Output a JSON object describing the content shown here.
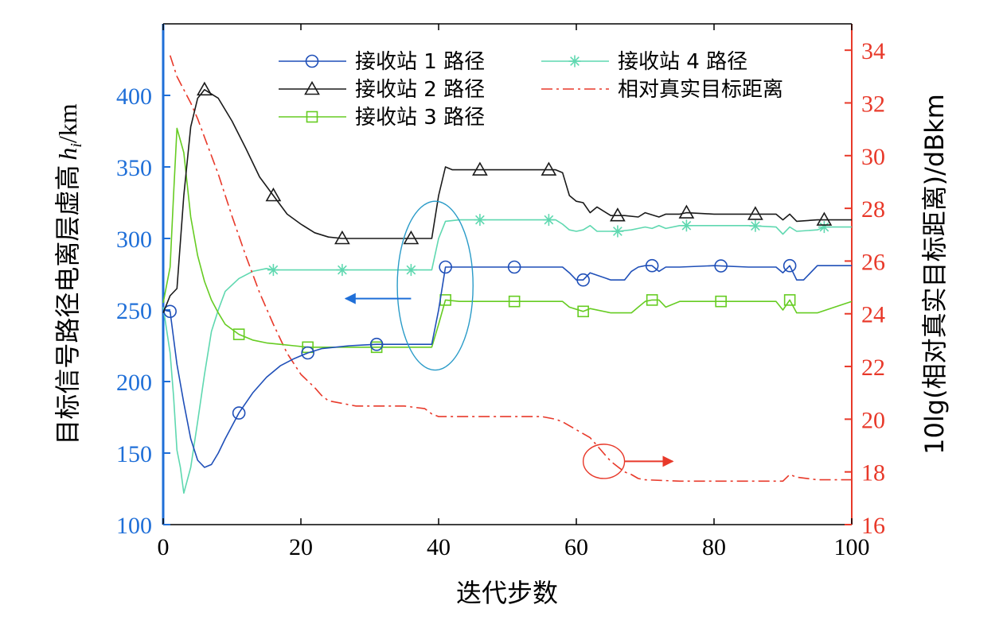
{
  "chart_data": {
    "type": "line",
    "xlabel": "迭代步数",
    "ylabel_left": "目标信号路径电离层虚高",
    "ylabel_left_symbol": "h",
    "ylabel_left_subscript": "i",
    "ylabel_left_unit": "/km",
    "ylabel_right": "10lg(相对真实目标距离)/dBkm",
    "xlim": [
      0,
      100
    ],
    "ylim_left": [
      100,
      450
    ],
    "ylim_right": [
      16,
      35
    ],
    "x_ticks": [
      "0",
      "20",
      "40",
      "60",
      "80",
      "100"
    ],
    "x_tick_values": [
      0,
      20,
      40,
      60,
      80,
      100
    ],
    "y_left_ticks": [
      "100",
      "150",
      "200",
      "250",
      "300",
      "350",
      "400"
    ],
    "y_left_tick_values": [
      100,
      150,
      200,
      250,
      300,
      350,
      400
    ],
    "y_right_ticks": [
      "16",
      "18",
      "20",
      "22",
      "24",
      "26",
      "28",
      "30",
      "32",
      "34"
    ],
    "y_right_tick_values": [
      16,
      18,
      20,
      22,
      24,
      26,
      28,
      30,
      32,
      34
    ],
    "grid": false,
    "legend_position": "top",
    "colors": {
      "left_axis": "#1f6fd8",
      "right_axis": "#e8392a",
      "series1": "#1f4fb8",
      "series2": "#1a1a1a",
      "series3": "#66cc22",
      "series4": "#5fd8b0",
      "series5": "#e8392a",
      "ellipse": "#2a9bc8"
    },
    "series": [
      {
        "name": "接收站 1 路径",
        "axis": "left",
        "marker": "circle",
        "marker_x": [
          1,
          11,
          21,
          31,
          41,
          51,
          61,
          71,
          81,
          91
        ],
        "x": [
          0,
          1,
          2,
          3,
          4,
          5,
          6,
          7,
          8,
          9,
          11,
          13,
          15,
          17,
          19,
          21,
          23,
          25,
          27,
          29,
          31,
          33,
          35,
          37,
          39,
          40,
          41,
          43,
          45,
          50,
          55,
          58,
          59,
          60,
          61,
          62,
          65,
          67,
          68,
          69,
          70,
          71,
          72,
          73,
          75,
          80,
          85,
          89,
          90,
          91,
          92,
          93,
          95,
          100
        ],
        "y": [
          250,
          249,
          212,
          185,
          160,
          145,
          140,
          142,
          150,
          160,
          178,
          192,
          203,
          211,
          216,
          220,
          223,
          224,
          225,
          225.5,
          226,
          226,
          226,
          226,
          226,
          250,
          280,
          280,
          280,
          280,
          280,
          280,
          276,
          271,
          271,
          276,
          271,
          271,
          277,
          280,
          281,
          281,
          277,
          280,
          280,
          281,
          280,
          280,
          276,
          281,
          271,
          271,
          281,
          281
        ]
      },
      {
        "name": "接收站 2 路径",
        "axis": "left",
        "marker": "triangle",
        "marker_x": [
          6,
          16,
          26,
          36,
          46,
          56,
          66,
          76,
          86,
          96
        ],
        "x": [
          0,
          1,
          2,
          3,
          4,
          5,
          6,
          8,
          10,
          12,
          14,
          16,
          18,
          20,
          22,
          24,
          26,
          28,
          30,
          35,
          38,
          39,
          40,
          41,
          42,
          45,
          50,
          55,
          57,
          58,
          59,
          60,
          61,
          62,
          63,
          65,
          67,
          69,
          70,
          72,
          73,
          75,
          76,
          80,
          85,
          89,
          90,
          91,
          92,
          95,
          100
        ],
        "y": [
          248,
          260,
          265,
          330,
          378,
          398,
          404,
          398,
          382,
          363,
          343,
          330,
          317,
          310,
          304,
          301,
          300,
          300,
          300,
          300,
          300,
          300,
          330,
          350,
          348,
          348,
          348,
          348,
          348,
          346,
          330,
          326,
          325,
          318,
          322,
          316,
          316,
          315,
          318,
          315,
          317,
          317,
          318,
          317,
          317,
          317,
          313,
          317,
          312,
          313,
          313
        ]
      },
      {
        "name": "接收站 3 路径",
        "axis": "left",
        "marker": "square",
        "marker_x": [
          11,
          21,
          31,
          41,
          51,
          61,
          71,
          81,
          91
        ],
        "x": [
          0,
          1,
          1.5,
          2,
          3,
          4,
          5,
          6,
          7,
          8,
          9,
          11,
          13,
          15,
          17,
          19,
          21,
          25,
          30,
          35,
          39,
          40,
          41,
          43,
          50,
          55,
          58,
          59,
          61,
          62,
          65,
          68,
          69,
          70,
          71,
          72,
          73,
          75,
          80,
          85,
          89,
          90,
          91,
          92,
          95,
          100
        ],
        "y": [
          255,
          280,
          330,
          377,
          360,
          315,
          288,
          270,
          257,
          248,
          240,
          233,
          229,
          227,
          226,
          225,
          224,
          224,
          224,
          224,
          224,
          240,
          257,
          256,
          256,
          256,
          256,
          252,
          249,
          251,
          248,
          248,
          252,
          256,
          257,
          257,
          252,
          256,
          256,
          256,
          256,
          250,
          257,
          248,
          248,
          256
        ]
      },
      {
        "name": "接收站 4 路径",
        "axis": "left",
        "marker": "asterisk",
        "marker_x": [
          16,
          26,
          36,
          46,
          56,
          66,
          76,
          86,
          96
        ],
        "x": [
          0,
          1,
          1.5,
          2,
          2.5,
          3,
          4,
          5,
          6,
          7,
          8,
          9,
          11,
          13,
          15,
          16,
          20,
          25,
          30,
          35,
          39,
          40,
          41,
          43,
          50,
          55,
          57,
          58,
          59,
          60,
          61,
          62,
          63,
          65,
          66,
          68,
          69,
          70,
          71,
          72,
          73,
          75,
          76,
          80,
          85,
          89,
          90,
          91,
          92,
          95,
          96,
          100
        ],
        "y": [
          252,
          220,
          190,
          152,
          140,
          122,
          140,
          172,
          205,
          235,
          250,
          263,
          272,
          277,
          279,
          278,
          278,
          278,
          278,
          278,
          278,
          300,
          312,
          313,
          313,
          313,
          313,
          310,
          306,
          305,
          306,
          309,
          305,
          305,
          305,
          306,
          307,
          308,
          307,
          309,
          307,
          309,
          309,
          309,
          309,
          308,
          303,
          308,
          305,
          306,
          308,
          308
        ]
      },
      {
        "name": "相对真实目标距离",
        "axis": "right",
        "marker": "none",
        "x": [
          1,
          2,
          3,
          4,
          5,
          6,
          8,
          10,
          12,
          14,
          16,
          18,
          20,
          22,
          23,
          24,
          26,
          28,
          30,
          35,
          38,
          39,
          40,
          45,
          50,
          55,
          57,
          58,
          60,
          62,
          63,
          64,
          65,
          66,
          67,
          68,
          69,
          70,
          75,
          80,
          85,
          90,
          91,
          92,
          95,
          100
        ],
        "y": [
          33.8,
          33.0,
          32.5,
          32.0,
          31.4,
          30.7,
          29.3,
          27.7,
          26.2,
          24.8,
          23.6,
          22.5,
          21.7,
          21.2,
          20.9,
          20.7,
          20.6,
          20.5,
          20.5,
          20.5,
          20.4,
          20.2,
          20.1,
          20.1,
          20.1,
          20.1,
          20.0,
          19.9,
          19.6,
          19.3,
          19.0,
          18.7,
          18.4,
          18.2,
          18.0,
          17.9,
          17.75,
          17.7,
          17.65,
          17.65,
          17.65,
          17.65,
          17.9,
          17.8,
          17.7,
          17.7
        ]
      }
    ],
    "annotations": [
      {
        "type": "ellipse",
        "center": [
          39.5,
          267
        ],
        "radius_x": 5.5,
        "radius_y": 59,
        "axis": "left"
      },
      {
        "type": "arrow",
        "from": [
          36,
          258
        ],
        "to": [
          26.5,
          258
        ],
        "axis": "left",
        "direction": "left"
      },
      {
        "type": "circle",
        "center": [
          64,
          18.4
        ],
        "radius_x": 3,
        "radius_y": 0.65,
        "axis": "right"
      },
      {
        "type": "arrow",
        "from": [
          67,
          18.4
        ],
        "to": [
          74,
          18.4
        ],
        "axis": "right",
        "direction": "right"
      }
    ]
  }
}
